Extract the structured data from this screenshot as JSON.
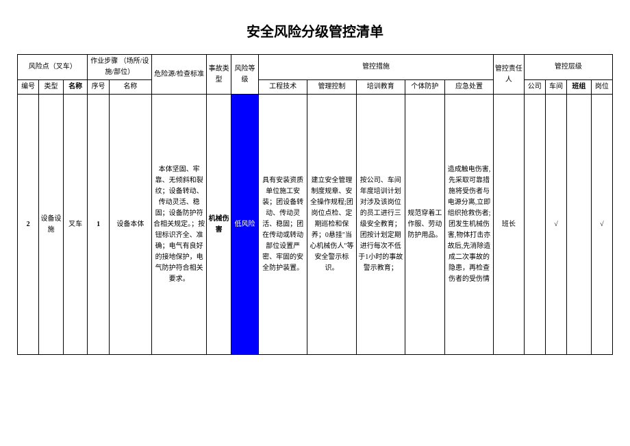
{
  "title": "安全风险分级管控清单",
  "headers": {
    "risk_point": "风险点（叉车）",
    "work_steps": "作业步骤\n（场所/设施/部位）",
    "hazard_source": "危险源/检查标准",
    "accident_type": "事故类型",
    "risk_level": "风险等级",
    "control_measures": "管控措施",
    "responsible_person": "管控责任人",
    "control_level": "管控层级",
    "sub": {
      "number": "编号",
      "type": "类型",
      "name": "名称",
      "seq": "序号",
      "step_name": "名称",
      "engineering": "工程技术",
      "management": "管理控制",
      "training": "培训教育",
      "personal": "个体防护",
      "emergency": "应急处置",
      "company": "公司",
      "workshop": "车间",
      "team": "班组",
      "post": "岗位"
    }
  },
  "row": {
    "number": "2",
    "type": "设备设施",
    "name": "叉车",
    "seq": "1",
    "step_name": "设备本体",
    "hazard": "本体坚固、牢靠、无倾斜和裂纹；设备转动、传动灵活、稳固；设备防护符合相关规定。；按钮标识齐全、准确；电气有良好的接地保护，电气防护符合相关要求。",
    "accident": "机械伤害",
    "risk_level": "低风险",
    "engineering": "具有安装资质单位施工安装；团设备转动、传动灵活、稳固；团在传动或转动部位设置严密、牢固的安全防护装置。",
    "management": "建立安全管理制度规章、安全操作规程;团岗位点检、定期巡检和保养；0悬挂\"当心机械伤人\"等安全警示标识。",
    "training": "按公司、车间年度培训计划对涉及该岗位的员工进行三级安全教育；团按计划定期进行每次不低于1小时的事故警示教育；",
    "personal": "规范穿着工作服、劳动防护用品。",
    "emergency": "造成触电伤害,先采取可靠措施将受伤者与电源分离,立即组织抢救伤者;团发生机械伤害,物体打击亦故后,先消除造成二次事故的隐患，再检查伤者的受伤情",
    "responsible": "班长",
    "company": "",
    "workshop": "√",
    "team": "",
    "post": "√"
  },
  "colors": {
    "risk_bg": "#0000ff",
    "risk_text": "#ffffff",
    "border": "#000000",
    "background": "#ffffff"
  }
}
